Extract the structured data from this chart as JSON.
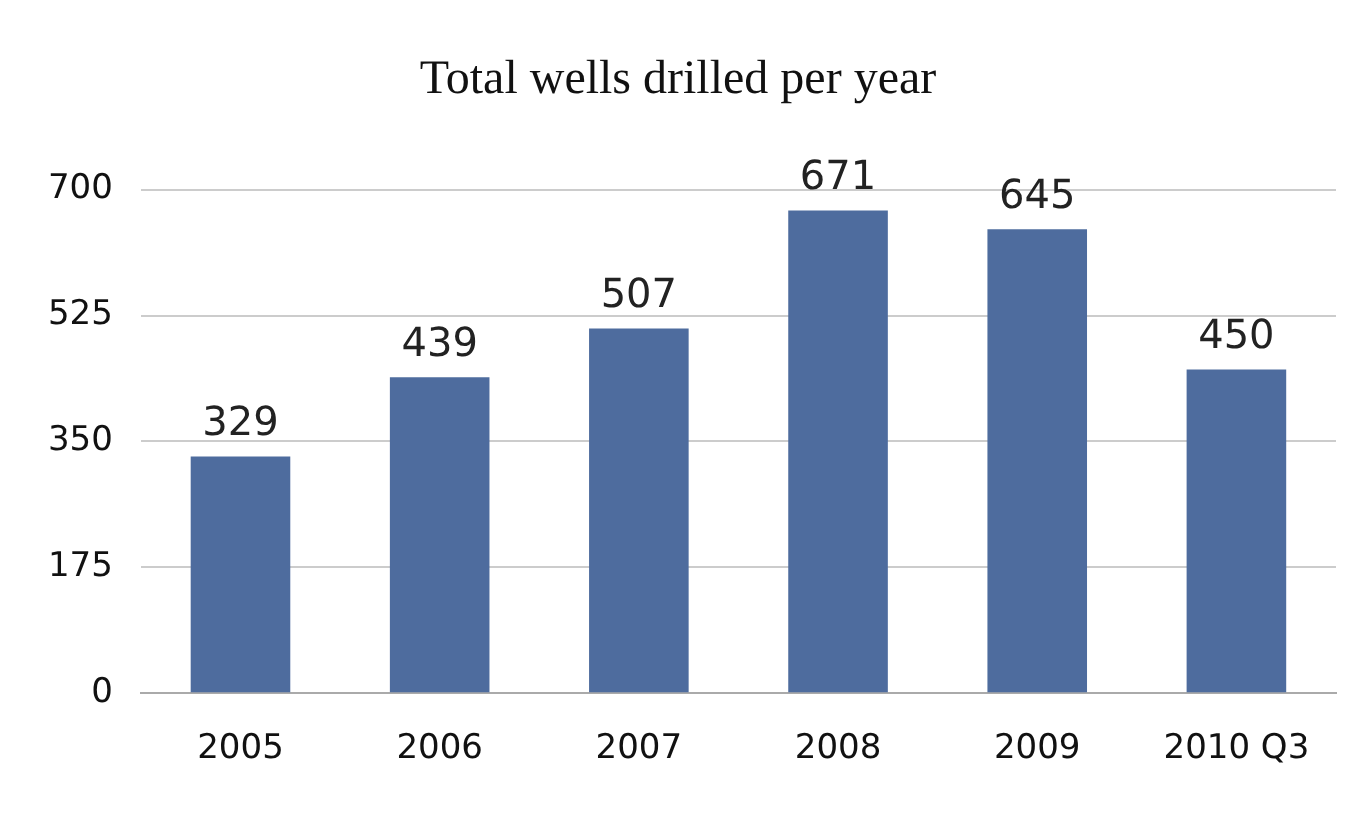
{
  "chart_data": {
    "type": "bar",
    "title": "Total wells drilled per year",
    "categories": [
      "2005",
      "2006",
      "2007",
      "2008",
      "2009",
      "2010 Q3"
    ],
    "values": [
      329,
      439,
      507,
      671,
      645,
      450
    ],
    "color": "#4e6c9e",
    "ylim": [
      0,
      700
    ],
    "yticks": [
      0,
      175,
      350,
      525,
      700
    ],
    "grid": "y",
    "data_labels": true
  }
}
